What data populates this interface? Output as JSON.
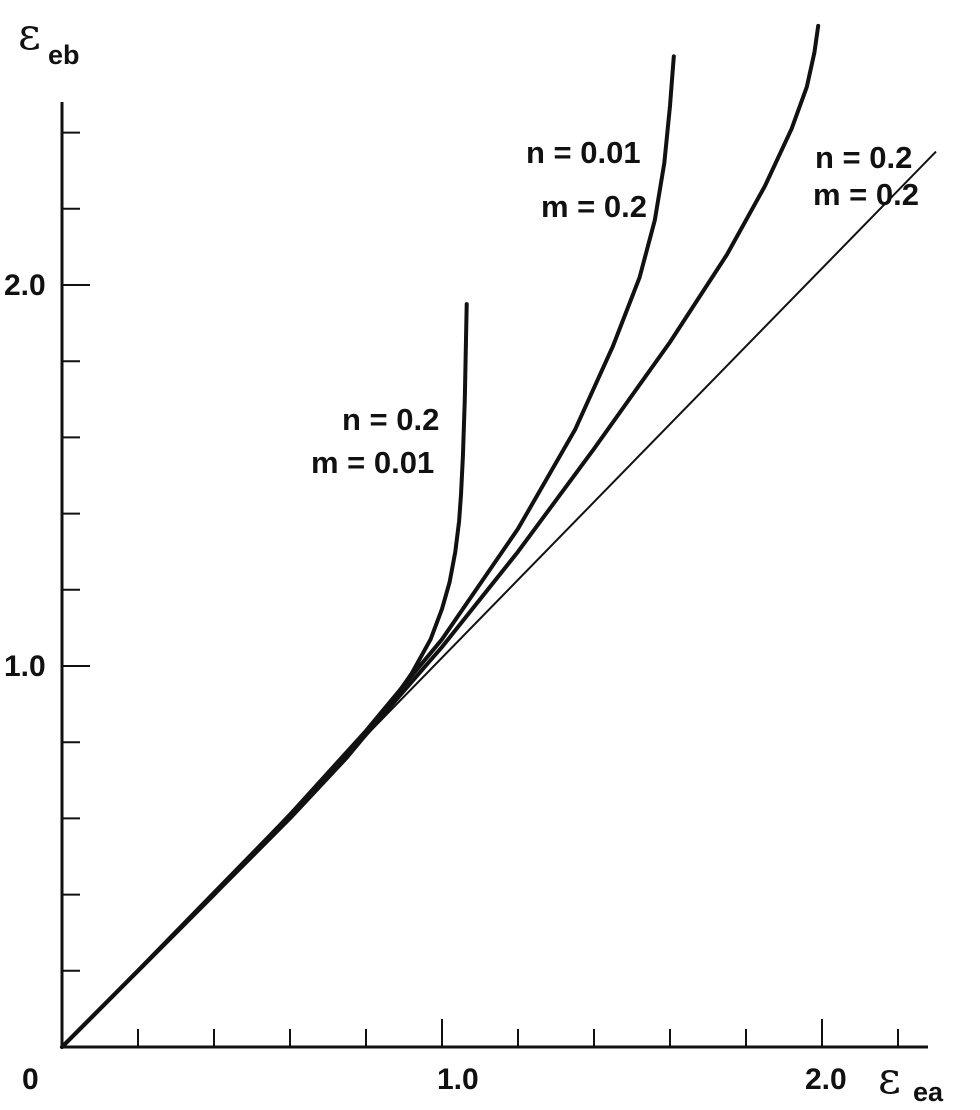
{
  "chart_data": {
    "type": "line",
    "title": "",
    "xlabel": {
      "symbol": "ε",
      "subscript": "ea"
    },
    "ylabel": {
      "symbol": "ε",
      "subscript": "eb"
    },
    "xlim": [
      0,
      2.3
    ],
    "ylim": [
      0,
      2.65
    ],
    "x_tick_labels": [
      "0",
      "1.0",
      "2.0"
    ],
    "y_tick_labels": [
      "1.0",
      "2.0"
    ],
    "minor_tick_step": 0.2,
    "grid": false,
    "series": [
      {
        "name": "reference diagonal",
        "style": "thin",
        "x": [
          0,
          2.3
        ],
        "y": [
          0,
          2.35
        ]
      },
      {
        "style": "thick",
        "label_lines": [
          "n = 0.2",
          "m = 0.01"
        ],
        "x": [
          0,
          0.2,
          0.4,
          0.6,
          0.75,
          0.85,
          0.92,
          0.97,
          1.0,
          1.02,
          1.035,
          1.045,
          1.05,
          1.055,
          1.06,
          1.065
        ],
        "y": [
          0,
          0.2,
          0.4,
          0.6,
          0.76,
          0.88,
          0.98,
          1.07,
          1.15,
          1.22,
          1.3,
          1.38,
          1.45,
          1.55,
          1.7,
          1.95
        ]
      },
      {
        "style": "thick",
        "label_lines": [
          "n = 0.01",
          "m = 0.2"
        ],
        "x": [
          0,
          0.2,
          0.4,
          0.6,
          0.8,
          1.0,
          1.2,
          1.35,
          1.45,
          1.52,
          1.56,
          1.585,
          1.6,
          1.61
        ],
        "y": [
          0,
          0.2,
          0.4,
          0.61,
          0.83,
          1.07,
          1.36,
          1.62,
          1.84,
          2.02,
          2.17,
          2.32,
          2.47,
          2.6
        ]
      },
      {
        "style": "thick",
        "label_lines": [
          "n = 0.2",
          "m = 0.2"
        ],
        "x": [
          0,
          0.2,
          0.4,
          0.6,
          0.8,
          1.0,
          1.2,
          1.4,
          1.6,
          1.75,
          1.85,
          1.92,
          1.96,
          1.98,
          1.99
        ],
        "y": [
          0,
          0.2,
          0.4,
          0.61,
          0.82,
          1.05,
          1.3,
          1.57,
          1.85,
          2.08,
          2.26,
          2.41,
          2.52,
          2.61,
          2.68
        ]
      }
    ]
  }
}
